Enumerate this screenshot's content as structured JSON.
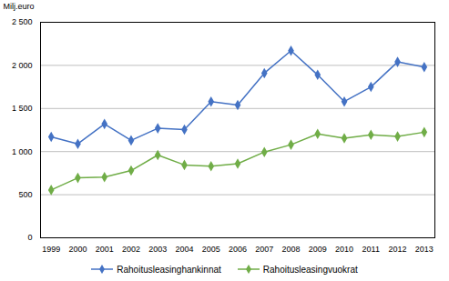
{
  "chart_data": {
    "type": "line",
    "x": [
      1999,
      2000,
      2001,
      2002,
      2003,
      2004,
      2005,
      2006,
      2007,
      2008,
      2009,
      2010,
      2011,
      2012,
      2013
    ],
    "series": [
      {
        "name": "Rahoitusleasinghankinnat",
        "color": "#4472C4",
        "values": [
          1170,
          1090,
          1320,
          1130,
          1270,
          1255,
          1580,
          1540,
          1910,
          2170,
          1890,
          1580,
          1750,
          2040,
          1980
        ]
      },
      {
        "name": "Rahoitusleasingvuokrat",
        "color": "#70AD47",
        "values": [
          555,
          695,
          705,
          780,
          960,
          845,
          830,
          860,
          995,
          1080,
          1205,
          1155,
          1195,
          1175,
          1225
        ]
      }
    ],
    "y_label": "Milj.euro",
    "xlim": [
      1998.6,
      2013.4
    ],
    "xticks": [
      1999,
      2000,
      2001,
      2002,
      2003,
      2004,
      2005,
      2006,
      2007,
      2008,
      2009,
      2010,
      2011,
      2012,
      2013
    ],
    "ylim": [
      0,
      2500
    ],
    "yticks": [
      0,
      500,
      {
        "value": 1000,
        "label": "1 000"
      },
      {
        "value": 1500,
        "label": "1 500"
      },
      {
        "value": 2000,
        "label": "2 000"
      },
      {
        "value": 2500,
        "label": "2 500"
      }
    ],
    "grid": true,
    "legend": "bottom",
    "marker": "diamond"
  }
}
